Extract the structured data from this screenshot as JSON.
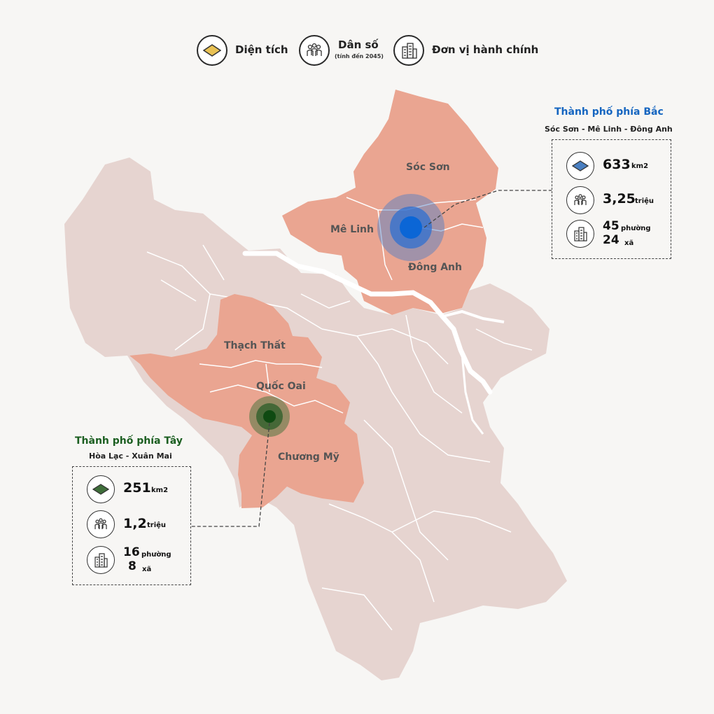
{
  "legend": {
    "area_label": "Diện tích",
    "population_label": "Dân số",
    "population_note": "(tính đến 2045)",
    "admin_label": "Đơn vị hành chính"
  },
  "districts": {
    "soc_son": "Sóc Sơn",
    "me_linh": "Mê Linh",
    "dong_anh": "Đông Anh",
    "thach_that": "Thạch Thất",
    "quoc_oai": "Quốc Oai",
    "chuong_my": "Chương Mỹ"
  },
  "north_city": {
    "title": "Thành phố phía Bắc",
    "subtitle": "Sóc Sơn - Mê Linh - Đông Anh",
    "area_value": "633",
    "area_unit": "km2",
    "population_value": "3,25",
    "population_unit": "triệu",
    "wards_value": "45",
    "wards_unit": "phường",
    "communes_value": "24",
    "communes_unit": "xã",
    "color": "#1565c0"
  },
  "west_city": {
    "title": "Thành phố phía Tây",
    "subtitle": "Hòa Lạc - Xuân Mai",
    "area_value": "251",
    "area_unit": "km2",
    "population_value": "1,2",
    "population_unit": "triệu",
    "wards_value": "16",
    "wards_unit": "phường",
    "communes_value": "8",
    "communes_unit": "xã",
    "color": "#1b5e20"
  },
  "colors": {
    "base_region": "#e6d4d0",
    "highlight_region": "#eaa591",
    "river": "#ffffff"
  }
}
